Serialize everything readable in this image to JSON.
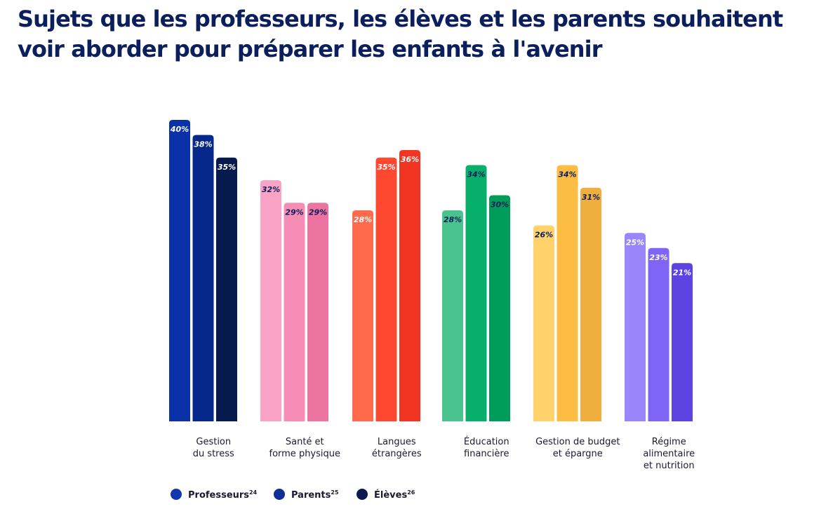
{
  "chart_data": {
    "type": "bar",
    "title": "Sujets que les professeurs, les élèves et les parents souhaitent voir aborder pour préparer les enfants à l'avenir",
    "categories": [
      [
        "Gestion",
        "du stress"
      ],
      [
        "Santé et",
        "forme physique"
      ],
      [
        "Langues",
        "étrangères"
      ],
      [
        "Éducation",
        "financière"
      ],
      [
        "Gestion de budget",
        "et épargne"
      ],
      [
        "Régime",
        "alimentaire",
        "et nutrition"
      ]
    ],
    "series": [
      {
        "name": "Professeurs",
        "sup": "24",
        "legend_color": "#1238b0",
        "values": [
          40,
          32,
          28,
          28,
          26,
          25
        ]
      },
      {
        "name": "Parents",
        "sup": "25",
        "legend_color": "#102f94",
        "values": [
          38,
          29,
          35,
          34,
          34,
          23
        ]
      },
      {
        "name": "Élèves",
        "sup": "26",
        "legend_color": "#0e1a4f",
        "values": [
          35,
          29,
          36,
          30,
          31,
          21
        ]
      }
    ],
    "bar_colors": [
      [
        "#0a31a8",
        "#06288a",
        "#061a4d"
      ],
      [
        "#faa3c6",
        "#f58db4",
        "#ec74a0"
      ],
      [
        "#ff6a4d",
        "#ff4830",
        "#f13522"
      ],
      [
        "#4ac48e",
        "#07b06a",
        "#009c59"
      ],
      [
        "#ffd26c",
        "#fcbd42",
        "#f0ae3f"
      ],
      [
        "#9b85fa",
        "#7f64f6",
        "#5d43e1"
      ]
    ],
    "label_colors": [
      [
        "#ffffff",
        "#ffffff",
        "#ffffff"
      ],
      [
        "#0b1f5c",
        "#0b1f5c",
        "#0b1f5c"
      ],
      [
        "#ffffff",
        "#ffffff",
        "#ffffff"
      ],
      [
        "#0b1f5c",
        "#0b1f5c",
        "#0b1f5c"
      ],
      [
        "#0b1f5c",
        "#0b1f5c",
        "#0b1f5c"
      ],
      [
        "#ffffff",
        "#ffffff",
        "#ffffff"
      ]
    ],
    "value_suffix": "%",
    "ylim": [
      0,
      40
    ],
    "xlabel": "",
    "ylabel": "",
    "grid": false,
    "legend_position": "bottom-left"
  }
}
